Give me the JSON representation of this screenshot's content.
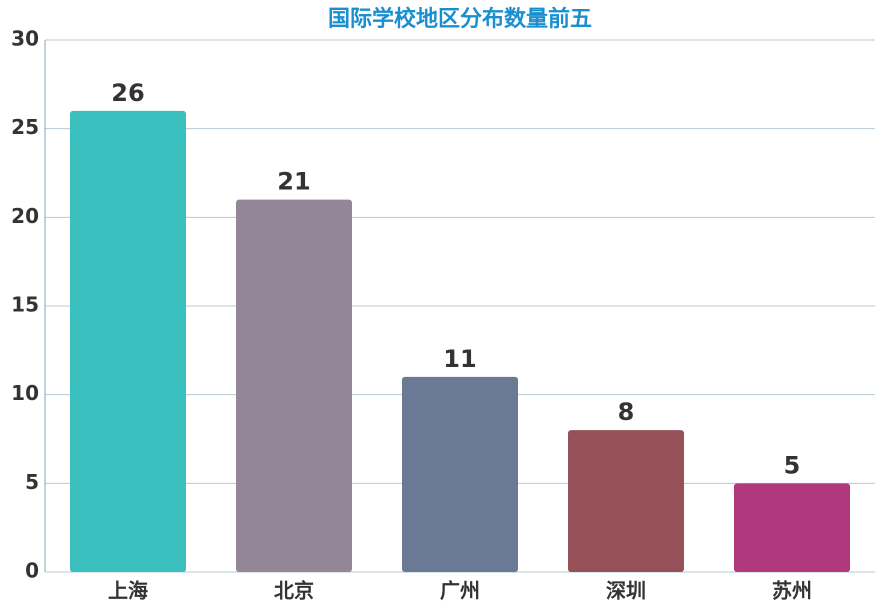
{
  "chart_data": {
    "type": "bar",
    "title": "国际学校地区分布数量前五",
    "categories": [
      "上海",
      "北京",
      "广州",
      "深圳",
      "苏州"
    ],
    "values": [
      26,
      21,
      11,
      8,
      5
    ],
    "colors": [
      "#3cbfbf",
      "#938797",
      "#6b7a94",
      "#955157",
      "#b0397e"
    ],
    "ylim": [
      0,
      30
    ],
    "yticks": [
      0,
      5,
      10,
      15,
      20,
      25,
      30
    ],
    "grid": true
  }
}
